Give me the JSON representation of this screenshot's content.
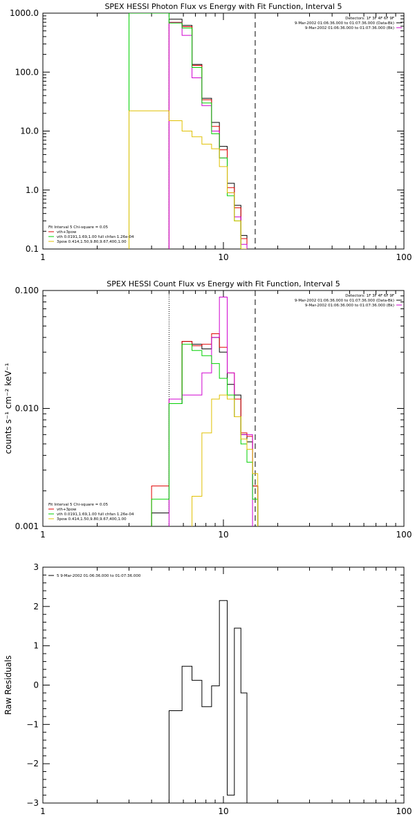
{
  "chart_data": [
    {
      "type": "line",
      "title": "SPEX HESSI Photon Flux vs Energy with Fit Function, Interval 5",
      "xscale": "log",
      "yscale": "log",
      "xlim": [
        1,
        100
      ],
      "ylim": [
        0.1,
        1000
      ],
      "xticks": [
        {
          "v": 1,
          "label": "1"
        },
        {
          "v": 10,
          "label": "10"
        },
        {
          "v": 100,
          "label": "100"
        }
      ],
      "yticks": [
        {
          "v": 0.1,
          "label": "0.1"
        },
        {
          "v": 1,
          "label": "1.0"
        },
        {
          "v": 10,
          "label": "10.0"
        },
        {
          "v": 100,
          "label": "100.0"
        },
        {
          "v": 1000,
          "label": "1000.0"
        }
      ],
      "bin_edges": [
        3.0,
        4.0,
        5.0,
        5.9,
        6.7,
        7.6,
        8.6,
        9.5,
        10.5,
        11.5,
        12.5,
        13.5,
        14.5
      ],
      "series": [
        {
          "name": "",
          "color": "#000000",
          "values": [
            null,
            null,
            790,
            620,
            135,
            36,
            14,
            5.5,
            1.3,
            0.55,
            0.17,
            null
          ]
        },
        {
          "name": "vth+3pow",
          "color": "#e00000",
          "values": [
            null,
            null,
            700,
            590,
            130,
            34,
            12,
            4.8,
            1.1,
            0.5,
            0.15,
            null
          ]
        },
        {
          "name": "",
          "color": "#d000d0",
          "values": [
            null,
            null,
            690,
            420,
            80,
            27,
            10,
            3.5,
            0.9,
            0.35,
            0.12,
            null
          ]
        },
        {
          "name": "vth 0.0191,1.69,1.00 full chfan 1.26e-04",
          "color": "#00d000",
          "values": [
            1000,
            1000,
            680,
            560,
            120,
            30,
            9,
            3.5,
            0.8,
            0.3,
            0.1,
            null
          ]
        },
        {
          "name": "3pow 0.414,1.50,9.80,9.67,400,1.00",
          "color": "#e0c000",
          "values": [
            22,
            22,
            15,
            10,
            8,
            6,
            5,
            2.5,
            0.9,
            0.3,
            0.1,
            null
          ]
        }
      ],
      "vlines": [
        {
          "x": 5.0,
          "color": "#a000d0",
          "dash": "2,2"
        },
        {
          "x": 15.0,
          "color": "#000000",
          "dash": "8,5"
        }
      ],
      "legend_top": [
        "Detectors: 1F 3F 4F 6F 9F",
        "9-Mar-2002 01:06:36.000 to 01:07:36.000 (Data-Bk)",
        "9-Mar-2002 01:06:36.000 to 01:07:36.000 (Bk)"
      ],
      "legend_top_colors": [
        "",
        "#000000",
        "#d000d0"
      ],
      "legend_fit_title": "Fit Interval  5    Chi-square = 0.05"
    },
    {
      "type": "line",
      "title": "SPEX HESSI Count Flux vs Energy with Fit Function, Interval 5",
      "ylabel": "counts s⁻¹ cm⁻² keV⁻¹",
      "xscale": "log",
      "yscale": "log",
      "xlim": [
        1,
        100
      ],
      "ylim": [
        0.001,
        0.1
      ],
      "xticks": [
        {
          "v": 1,
          "label": "1"
        },
        {
          "v": 10,
          "label": "10"
        },
        {
          "v": 100,
          "label": "100"
        }
      ],
      "yticks": [
        {
          "v": 0.001,
          "label": "0.001"
        },
        {
          "v": 0.01,
          "label": "0.010"
        },
        {
          "v": 0.1,
          "label": "0.100"
        }
      ],
      "bin_edges": [
        4.0,
        5.0,
        5.9,
        6.7,
        7.6,
        8.6,
        9.5,
        10.5,
        11.5,
        12.5,
        13.5,
        14.5,
        15.5,
        16.5
      ],
      "series": [
        {
          "name": "",
          "color": "#000000",
          "values": [
            0.0013,
            0.011,
            0.037,
            0.035,
            0.032,
            0.04,
            0.03,
            0.016,
            0.013,
            0.006,
            0.0052,
            0.0022,
            null
          ]
        },
        {
          "name": "vth+3pow",
          "color": "#e00000",
          "values": [
            0.0022,
            0.012,
            0.037,
            0.034,
            0.035,
            0.043,
            0.033,
            0.02,
            0.012,
            0.0062,
            0.0058,
            0.0022,
            null
          ]
        },
        {
          "name": "",
          "color": "#d000d0",
          "values": [
            null,
            0.012,
            0.013,
            0.013,
            0.02,
            0.04,
            0.088,
            0.02,
            0.0085,
            0.006,
            0.006,
            null,
            null
          ]
        },
        {
          "name": "vth 0.0191,1.69,1.00 full chfan 1.26e-04",
          "color": "#00d000",
          "values": [
            0.0017,
            0.011,
            0.035,
            0.031,
            0.028,
            0.024,
            0.018,
            0.013,
            0.0085,
            0.005,
            0.0035,
            0.0017,
            null
          ]
        },
        {
          "name": "3pow 0.414,1.50,9.80,9.67,400,1.00",
          "color": "#e0c000",
          "values": [
            null,
            null,
            null,
            0.0018,
            0.0062,
            0.012,
            0.013,
            0.012,
            0.0085,
            0.0055,
            0.0045,
            0.0028,
            null
          ]
        }
      ],
      "vlines": [
        {
          "x": 5.0,
          "color": "#000000",
          "dash": "1,2"
        },
        {
          "x": 15.0,
          "color": "#000000",
          "dash": "8,5"
        }
      ],
      "legend_top": [
        "Detectors: 1F 3F 4F 6F 9F",
        "9-Mar-2002 01:06:36.000 to 01:07:36.000 (Data-Bk)",
        "9-Mar-2002 01:06:36.000 to 01:07:36.000 (Bk)"
      ],
      "legend_top_colors": [
        "",
        "#000000",
        "#d000d0"
      ],
      "legend_fit_title": "Fit Interval  5    Chi-square = 0.05"
    },
    {
      "type": "line",
      "title": "",
      "ylabel": "Raw Residuals",
      "xscale": "log",
      "yscale": "linear",
      "xlim": [
        1,
        100
      ],
      "ylim": [
        -3,
        3
      ],
      "xticks": [
        {
          "v": 1,
          "label": "1"
        },
        {
          "v": 10,
          "label": "10"
        },
        {
          "v": 100,
          "label": "100"
        }
      ],
      "yticks": [
        {
          "v": -3,
          "label": "−3"
        },
        {
          "v": -2,
          "label": "−2"
        },
        {
          "v": -1,
          "label": "−1"
        },
        {
          "v": 0,
          "label": "0"
        },
        {
          "v": 1,
          "label": "1"
        },
        {
          "v": 2,
          "label": "2"
        },
        {
          "v": 3,
          "label": "3"
        }
      ],
      "bin_edges": [
        5.0,
        5.9,
        6.7,
        7.6,
        8.6,
        9.5,
        10.5,
        11.5,
        12.5,
        13.5,
        14.5
      ],
      "series": [
        {
          "name": "5  9-Mar-2002 01:06:36.000 to 01:07:36.000",
          "color": "#000000",
          "values": [
            -0.65,
            0.48,
            0.12,
            -0.55,
            -0.02,
            2.15,
            -2.8,
            1.45,
            -0.2,
            null
          ]
        }
      ],
      "legend_top": [],
      "legend_top_colors": [],
      "legend_fit_title": ""
    }
  ]
}
